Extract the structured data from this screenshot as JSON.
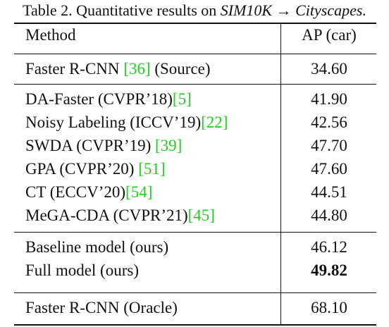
{
  "caption": {
    "prefix": "Table 2. Quantitative results on ",
    "source": "SIM10K",
    "arrow": "→",
    "target": "Cityscapes",
    "suffix": "."
  },
  "header": {
    "method": "Method",
    "metric": "AP (car)"
  },
  "sections": [
    [
      {
        "method": "Faster R-CNN ",
        "ref": "[36]",
        "after": " (Source)",
        "ap": "34.60"
      }
    ],
    [
      {
        "method": "DA-Faster (CVPR’18)",
        "ref": "[5]",
        "after": "",
        "ap": "41.90"
      },
      {
        "method": "Noisy Labeling (ICCV’19)",
        "ref": "[22]",
        "after": "",
        "ap": "42.56"
      },
      {
        "method": "SWDA (CVPR’19) ",
        "ref": "[39]",
        "after": "",
        "ap": "47.70"
      },
      {
        "method": "GPA (CVPR’20) ",
        "ref": "[51]",
        "after": "",
        "ap": "47.60"
      },
      {
        "method": "CT (ECCV’20)",
        "ref": "[54]",
        "after": "",
        "ap": "44.51"
      },
      {
        "method": "MeGA-CDA (CVPR’21)",
        "ref": "[45]",
        "after": "",
        "ap": "44.80"
      }
    ],
    [
      {
        "method": "Baseline model (ours)",
        "ref": "",
        "after": "",
        "ap": "46.12"
      },
      {
        "method": "Full model (ours)",
        "ref": "",
        "after": "",
        "ap": "49.82",
        "bold": true
      }
    ],
    [
      {
        "method": "Faster R-CNN (Oracle)",
        "ref": "",
        "after": "",
        "ap": "68.10"
      }
    ]
  ],
  "colors": {
    "text": "#111111",
    "citation": "#1fcf1f",
    "background": "#ffffff"
  }
}
